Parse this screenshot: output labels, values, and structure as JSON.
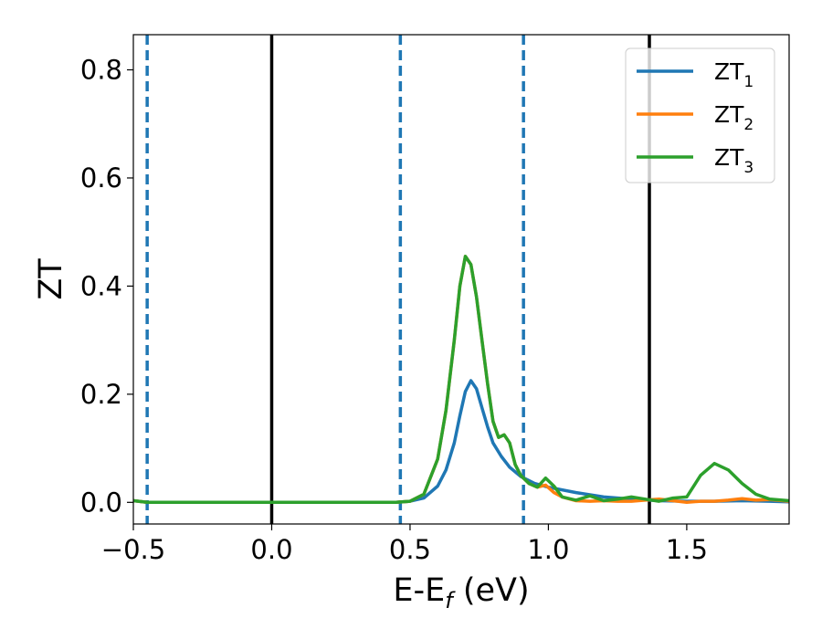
{
  "chart_data": {
    "type": "line",
    "xlabel": "E-E",
    "xlabel_sub": "f",
    "xlabel_unit": "(eV)",
    "ylabel": "ZT",
    "xlim": [
      -0.5,
      1.87
    ],
    "ylim": [
      -0.04,
      0.865
    ],
    "xticks": [
      -0.5,
      0.0,
      0.5,
      1.0,
      1.5
    ],
    "xtick_labels": [
      "−0.5",
      "0.0",
      "0.5",
      "1.0",
      "1.5"
    ],
    "yticks": [
      0.0,
      0.2,
      0.4,
      0.6,
      0.8
    ],
    "ytick_labels": [
      "0.0",
      "0.2",
      "0.4",
      "0.6",
      "0.8"
    ],
    "grid": false,
    "legend_position": "top-right",
    "vlines": [
      {
        "x": -0.45,
        "style": "dashed",
        "color": "#1f77b4"
      },
      {
        "x": 0.0,
        "style": "solid",
        "color": "#000000"
      },
      {
        "x": 0.465,
        "style": "dashed",
        "color": "#1f77b4"
      },
      {
        "x": 0.91,
        "style": "dashed",
        "color": "#1f77b4"
      },
      {
        "x": 1.365,
        "style": "solid",
        "color": "#000000"
      }
    ],
    "series": [
      {
        "name": "ZT",
        "name_sub": "1",
        "color": "#1f77b4",
        "x": [
          -0.5,
          -0.45,
          -0.3,
          0.0,
          0.3,
          0.45,
          0.5,
          0.55,
          0.6,
          0.63,
          0.66,
          0.68,
          0.7,
          0.72,
          0.74,
          0.76,
          0.78,
          0.8,
          0.83,
          0.86,
          0.9,
          0.95,
          1.0,
          1.1,
          1.2,
          1.3,
          1.4,
          1.5,
          1.6,
          1.7,
          1.8,
          1.87
        ],
        "y": [
          0.003,
          0.0,
          0.0,
          0.0,
          0.0,
          0.0,
          0.002,
          0.008,
          0.03,
          0.06,
          0.11,
          0.16,
          0.205,
          0.225,
          0.21,
          0.175,
          0.14,
          0.11,
          0.085,
          0.065,
          0.048,
          0.035,
          0.028,
          0.018,
          0.01,
          0.006,
          0.003,
          0.002,
          0.002,
          0.003,
          0.002,
          0.001
        ]
      },
      {
        "name": "ZT",
        "name_sub": "2",
        "color": "#ff7f0e",
        "x": [
          -0.5,
          -0.45,
          0.0,
          0.45,
          0.5,
          0.55,
          0.6,
          0.63,
          0.66,
          0.68,
          0.7,
          0.72,
          0.74,
          0.76,
          0.78,
          0.8,
          0.82,
          0.84,
          0.86,
          0.88,
          0.9,
          0.93,
          0.96,
          0.99,
          1.02,
          1.05,
          1.1,
          1.15,
          1.2,
          1.25,
          1.3,
          1.35,
          1.4,
          1.45,
          1.5,
          1.55,
          1.6,
          1.65,
          1.7,
          1.75,
          1.8,
          1.87
        ],
        "y": [
          0.003,
          0.0,
          0.0,
          0.0,
          0.002,
          0.015,
          0.08,
          0.17,
          0.3,
          0.4,
          0.455,
          0.44,
          0.38,
          0.3,
          0.22,
          0.15,
          0.12,
          0.125,
          0.11,
          0.07,
          0.05,
          0.035,
          0.028,
          0.032,
          0.018,
          0.01,
          0.003,
          0.002,
          0.003,
          0.002,
          0.002,
          0.004,
          0.006,
          0.003,
          0.0,
          0.002,
          0.002,
          0.004,
          0.007,
          0.004,
          0.005,
          0.002
        ]
      },
      {
        "name": "ZT",
        "name_sub": "3",
        "color": "#2ca02c",
        "x": [
          -0.5,
          -0.45,
          0.0,
          0.45,
          0.5,
          0.55,
          0.6,
          0.63,
          0.66,
          0.68,
          0.7,
          0.72,
          0.74,
          0.76,
          0.78,
          0.8,
          0.82,
          0.84,
          0.86,
          0.88,
          0.9,
          0.93,
          0.96,
          0.99,
          1.02,
          1.05,
          1.1,
          1.15,
          1.2,
          1.25,
          1.3,
          1.35,
          1.4,
          1.45,
          1.5,
          1.55,
          1.6,
          1.65,
          1.7,
          1.75,
          1.8,
          1.87
        ],
        "y": [
          0.003,
          0.0,
          0.0,
          0.0,
          0.002,
          0.015,
          0.08,
          0.17,
          0.3,
          0.4,
          0.455,
          0.44,
          0.38,
          0.3,
          0.22,
          0.15,
          0.12,
          0.125,
          0.11,
          0.07,
          0.05,
          0.035,
          0.028,
          0.045,
          0.03,
          0.01,
          0.004,
          0.012,
          0.003,
          0.006,
          0.01,
          0.006,
          0.002,
          0.008,
          0.01,
          0.05,
          0.072,
          0.06,
          0.035,
          0.015,
          0.006,
          0.003
        ]
      }
    ]
  }
}
